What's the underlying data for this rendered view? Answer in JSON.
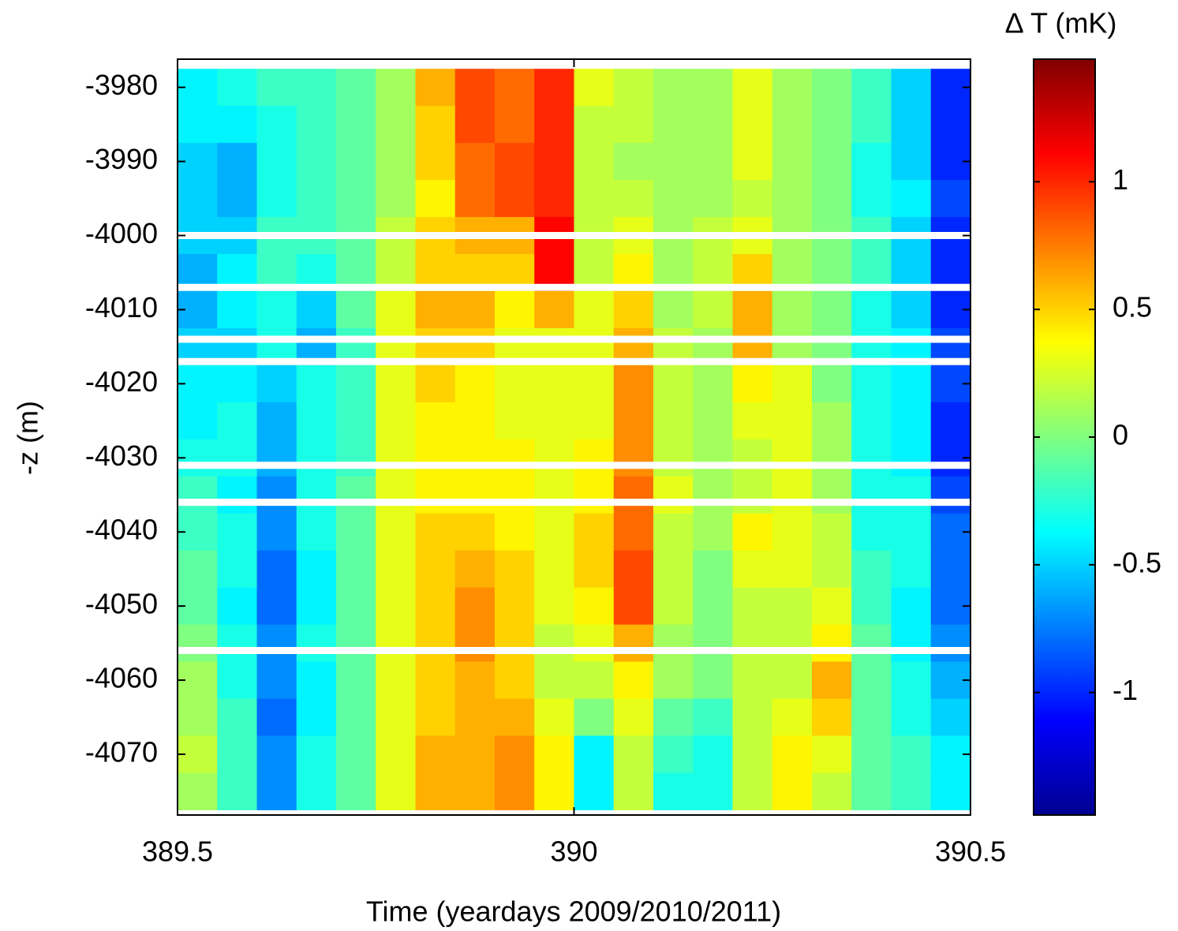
{
  "chart_data": {
    "type": "heatmap",
    "xlabel": "Time (yeardays 2009/2010/2011)",
    "ylabel": "-z (m)",
    "colorbar_label": "∆ T (mK)",
    "colormap": "jet",
    "xlim": [
      389.5,
      390.5
    ],
    "xticks": [
      389.5,
      390,
      390.5
    ],
    "ylim": [
      -4078.2,
      -3976.2
    ],
    "yticks": [
      -3980,
      -3990,
      -4000,
      -4010,
      -4020,
      -4030,
      -4040,
      -4050,
      -4060,
      -4070
    ],
    "clim": [
      -1.48,
      1.48
    ],
    "colorbar_ticks": [
      1,
      0.5,
      0,
      -0.5,
      -1
    ],
    "x": [
      389.525,
      389.575,
      389.625,
      389.675,
      389.725,
      389.775,
      389.825,
      389.875,
      389.925,
      389.975,
      390.025,
      390.075,
      390.125,
      390.175,
      390.225,
      390.275,
      390.325,
      390.375,
      390.425,
      390.475
    ],
    "y": [
      -3980,
      -3985,
      -3990,
      -3995,
      -4000,
      -4005,
      -4010,
      -4015,
      -4020,
      -4025,
      -4030,
      -4035,
      -4040,
      -4045,
      -4050,
      -4055,
      -4060,
      -4065,
      -4070,
      -4075
    ],
    "gap_depths": [
      -4000,
      -4007,
      -4014,
      -4017,
      -4031,
      -4036,
      -4056
    ],
    "z": [
      [
        -0.4,
        -0.3,
        -0.2,
        -0.2,
        -0.1,
        0.1,
        0.6,
        0.9,
        0.8,
        1.0,
        0.3,
        0.2,
        0.1,
        0.1,
        0.3,
        0.1,
        0.0,
        -0.2,
        -0.5,
        -1.0
      ],
      [
        -0.4,
        -0.4,
        -0.3,
        -0.2,
        -0.1,
        0.1,
        0.5,
        0.9,
        0.8,
        1.0,
        0.2,
        0.2,
        0.1,
        0.1,
        0.3,
        0.1,
        0.0,
        -0.2,
        -0.5,
        -1.0
      ],
      [
        -0.5,
        -0.6,
        -0.3,
        -0.2,
        -0.1,
        0.1,
        0.5,
        0.8,
        0.9,
        1.0,
        0.2,
        0.1,
        0.1,
        0.1,
        0.3,
        0.1,
        0.0,
        -0.3,
        -0.5,
        -1.0
      ],
      [
        -0.5,
        -0.6,
        -0.3,
        -0.2,
        -0.1,
        0.1,
        0.4,
        0.8,
        0.9,
        1.0,
        0.2,
        0.2,
        0.1,
        0.1,
        0.2,
        0.1,
        0.0,
        -0.3,
        -0.4,
        -0.9
      ],
      [
        -0.5,
        -0.5,
        -0.2,
        -0.2,
        -0.1,
        0.2,
        0.5,
        0.6,
        0.6,
        1.1,
        0.2,
        0.3,
        0.1,
        0.2,
        0.3,
        0.1,
        0.0,
        -0.2,
        -0.5,
        -1.0
      ],
      [
        -0.6,
        -0.4,
        -0.2,
        -0.3,
        -0.1,
        0.2,
        0.5,
        0.5,
        0.5,
        1.1,
        0.2,
        0.4,
        0.1,
        0.2,
        0.5,
        0.1,
        0.0,
        -0.2,
        -0.5,
        -1.0
      ],
      [
        -0.6,
        -0.4,
        -0.3,
        -0.5,
        -0.1,
        0.3,
        0.6,
        0.6,
        0.4,
        0.6,
        0.3,
        0.5,
        0.1,
        0.2,
        0.6,
        0.1,
        0.0,
        -0.3,
        -0.5,
        -1.0
      ],
      [
        -0.5,
        -0.5,
        -0.3,
        -0.6,
        -0.2,
        0.3,
        0.5,
        0.5,
        0.3,
        0.3,
        0.3,
        0.6,
        0.2,
        0.1,
        0.6,
        0.1,
        0.0,
        -0.3,
        -0.4,
        -0.9
      ],
      [
        -0.4,
        -0.4,
        -0.5,
        -0.3,
        -0.2,
        0.3,
        0.5,
        0.4,
        0.3,
        0.3,
        0.3,
        0.7,
        0.2,
        0.1,
        0.4,
        0.3,
        0.0,
        -0.3,
        -0.4,
        -0.9
      ],
      [
        -0.4,
        -0.3,
        -0.6,
        -0.3,
        -0.2,
        0.3,
        0.4,
        0.4,
        0.3,
        0.3,
        0.3,
        0.7,
        0.2,
        0.1,
        0.3,
        0.3,
        0.1,
        -0.3,
        -0.4,
        -1.0
      ],
      [
        -0.3,
        -0.3,
        -0.6,
        -0.3,
        -0.2,
        0.3,
        0.4,
        0.4,
        0.4,
        0.3,
        0.4,
        0.7,
        0.2,
        0.1,
        0.2,
        0.3,
        0.1,
        -0.3,
        -0.4,
        -1.0
      ],
      [
        -0.2,
        -0.4,
        -0.7,
        -0.3,
        -0.1,
        0.3,
        0.4,
        0.4,
        0.4,
        0.3,
        0.4,
        0.8,
        0.3,
        0.1,
        0.2,
        0.3,
        0.1,
        -0.3,
        -0.3,
        -0.9
      ],
      [
        -0.2,
        -0.3,
        -0.7,
        -0.3,
        -0.1,
        0.3,
        0.5,
        0.5,
        0.4,
        0.3,
        0.5,
        0.8,
        0.2,
        0.1,
        0.4,
        0.3,
        0.2,
        -0.3,
        -0.3,
        -0.8
      ],
      [
        -0.1,
        -0.3,
        -0.8,
        -0.4,
        -0.1,
        0.3,
        0.5,
        0.6,
        0.5,
        0.3,
        0.5,
        0.9,
        0.2,
        0.0,
        0.3,
        0.3,
        0.2,
        -0.2,
        -0.3,
        -0.8
      ],
      [
        -0.1,
        -0.4,
        -0.8,
        -0.4,
        -0.1,
        0.3,
        0.5,
        0.7,
        0.5,
        0.3,
        0.4,
        0.9,
        0.2,
        0.0,
        0.2,
        0.2,
        0.3,
        -0.2,
        -0.4,
        -0.8
      ],
      [
        0.0,
        -0.3,
        -0.7,
        -0.3,
        -0.1,
        0.3,
        0.5,
        0.7,
        0.5,
        0.2,
        0.3,
        0.6,
        0.1,
        0.0,
        0.2,
        0.2,
        0.4,
        -0.1,
        -0.4,
        -0.7
      ],
      [
        0.1,
        -0.3,
        -0.7,
        -0.4,
        -0.1,
        0.3,
        0.5,
        0.6,
        0.5,
        0.2,
        0.2,
        0.4,
        0.1,
        0.0,
        0.2,
        0.2,
        0.6,
        -0.1,
        -0.3,
        -0.6
      ],
      [
        0.1,
        -0.2,
        -0.8,
        -0.4,
        -0.1,
        0.3,
        0.5,
        0.6,
        0.6,
        0.3,
        0.0,
        0.3,
        -0.1,
        -0.2,
        0.2,
        0.3,
        0.5,
        -0.1,
        -0.3,
        -0.5
      ],
      [
        0.2,
        -0.2,
        -0.7,
        -0.3,
        -0.1,
        0.3,
        0.6,
        0.6,
        0.7,
        0.4,
        -0.4,
        0.2,
        -0.2,
        -0.3,
        0.2,
        0.4,
        0.3,
        -0.1,
        -0.2,
        -0.4
      ],
      [
        0.1,
        -0.2,
        -0.7,
        -0.3,
        -0.1,
        0.3,
        0.6,
        0.6,
        0.7,
        0.4,
        -0.4,
        0.2,
        -0.3,
        -0.3,
        0.2,
        0.4,
        0.2,
        -0.1,
        -0.2,
        -0.4
      ]
    ]
  }
}
